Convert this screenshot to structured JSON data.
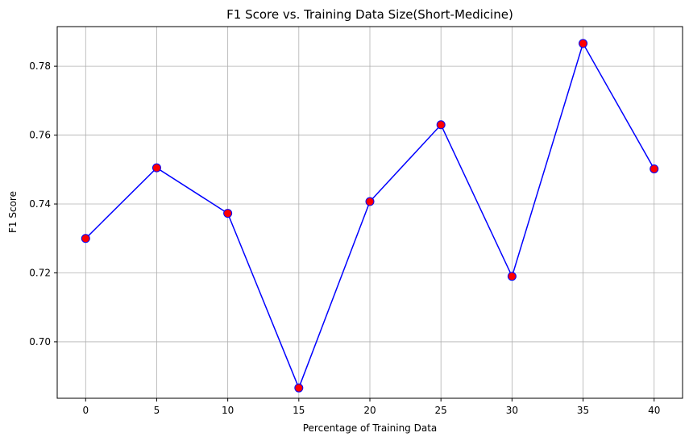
{
  "chart_data": {
    "type": "line",
    "title": "F1 Score vs. Training Data Size(Short-Medicine)",
    "xlabel": "Percentage of Training Data",
    "ylabel": "F1 Score",
    "x": [
      0,
      5,
      10,
      15,
      20,
      25,
      30,
      35,
      40
    ],
    "y": [
      0.73,
      0.7505,
      0.7373,
      0.6866,
      0.7407,
      0.763,
      0.719,
      0.7866,
      0.7502
    ],
    "xlim": [
      -2.0,
      42.0
    ],
    "ylim": [
      0.6836,
      0.7915
    ],
    "xticks": [
      0,
      5,
      10,
      15,
      20,
      25,
      30,
      35,
      40
    ],
    "xtick_labels": [
      "0",
      "5",
      "10",
      "15",
      "20",
      "25",
      "30",
      "35",
      "40"
    ],
    "yticks": [
      0.7,
      0.72,
      0.74,
      0.76,
      0.78
    ],
    "ytick_labels": [
      "0.70",
      "0.72",
      "0.74",
      "0.76",
      "0.78"
    ],
    "grid": true,
    "line_color": "#0000ff",
    "marker_face_color": "#ff0000",
    "marker_edge_color": "#0000ff"
  }
}
